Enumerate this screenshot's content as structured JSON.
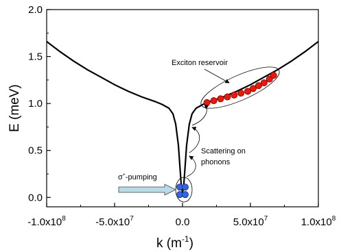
{
  "chart_data": {
    "type": "line",
    "title": "",
    "xlabel": "k (m",
    "xlabel_sup": "-1",
    "xlabel_end": ")",
    "ylabel": "E (meV)",
    "xlim": [
      -100000000,
      100000000
    ],
    "ylim": [
      -0.1,
      2.0
    ],
    "grid": false,
    "legend": "none",
    "x_ticks": [
      {
        "value": -100000000,
        "label": "-1.0x10"
      },
      {
        "value": -50000000,
        "label": "-5.0x10"
      },
      {
        "value": 0,
        "label": "0.0"
      },
      {
        "value": 50000000,
        "label": "5.0x10"
      },
      {
        "value": 100000000,
        "label": "1.0x10"
      }
    ],
    "x_tick_exponents": [
      "8",
      "7",
      "",
      "7",
      "8"
    ],
    "y_ticks": [
      {
        "value": 0.0,
        "label": "0.0"
      },
      {
        "value": 0.5,
        "label": "0.5"
      },
      {
        "value": 1.0,
        "label": "1.0"
      },
      {
        "value": 1.5,
        "label": "1.5"
      },
      {
        "value": 2.0,
        "label": "2.0"
      }
    ],
    "series": [
      {
        "color": "#000000",
        "x": [
          -100000000,
          -90000000,
          -80000000,
          -70000000,
          -60000000,
          -50000000,
          -40000000,
          -30000000,
          -20000000,
          -15000000,
          -10000000,
          -7000000,
          -5000000,
          -3000000,
          -2000000,
          -1000000,
          0,
          1000000,
          2000000,
          3000000,
          5000000,
          7000000,
          10000000,
          15000000,
          20000000,
          30000000,
          40000000,
          50000000,
          60000000,
          70000000,
          80000000,
          90000000,
          100000000
        ],
        "y": [
          1.66,
          1.55,
          1.45,
          1.36,
          1.28,
          1.2,
          1.13,
          1.07,
          1.02,
          0.99,
          0.95,
          0.89,
          0.78,
          0.55,
          0.35,
          0.15,
          0.05,
          0.15,
          0.35,
          0.55,
          0.78,
          0.89,
          0.95,
          0.99,
          1.02,
          1.07,
          1.13,
          1.2,
          1.28,
          1.36,
          1.45,
          1.55,
          1.66
        ]
      }
    ],
    "reservoir_points": {
      "color": "#e81a0e",
      "x": [
        18000000,
        23000000,
        28000000,
        33000000,
        38000000,
        43000000,
        48000000,
        52000000,
        56000000,
        60000000,
        64000000,
        67000000
      ],
      "y": [
        1.01,
        1.03,
        1.05,
        1.07,
        1.09,
        1.11,
        1.13,
        1.16,
        1.19,
        1.22,
        1.26,
        1.3
      ]
    },
    "pumped_points": {
      "color": "#3366dd",
      "x": [
        -2000000,
        2000000,
        -2000000,
        2000000
      ],
      "y": [
        0.11,
        0.11,
        0.03,
        0.03
      ]
    },
    "annotations": {
      "exciton_reservoir": "Exciton reservoir",
      "scattering_line1": "Scattering on",
      "scattering_line2": "phonons",
      "pumping": "-pumping",
      "pumping_symbol": "σ",
      "pumping_sup": "+"
    },
    "colors": {
      "reservoir": "#e81a0e",
      "pumped": "#3366dd",
      "pump_arrow_fill": "#b8dbe6"
    }
  }
}
